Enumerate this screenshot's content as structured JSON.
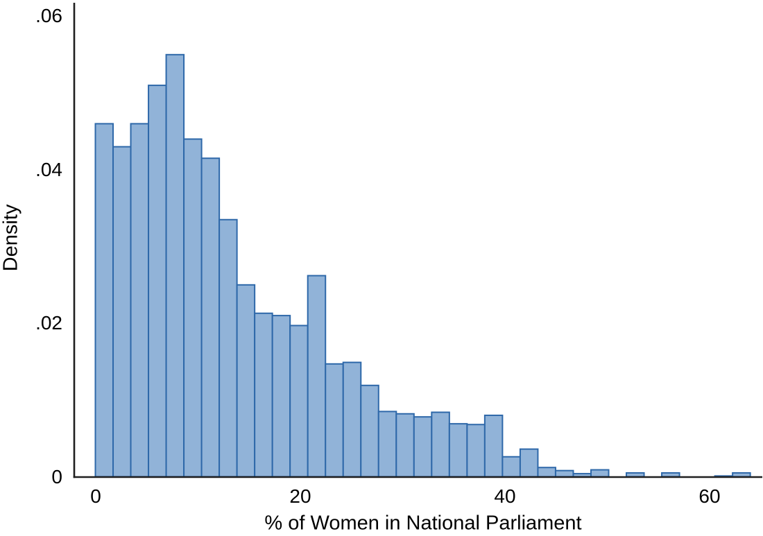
{
  "figure": {
    "background_color": "#ffffff",
    "text_color": "#000000"
  },
  "chart_data": {
    "type": "bar",
    "subtype": "histogram",
    "title": "",
    "xlabel": "% of Women in National Parliament",
    "ylabel": "Density",
    "n_bins": 37,
    "bin_width": 1.73,
    "bin_starts": [
      0,
      1.73,
      3.46,
      5.19,
      6.92,
      8.65,
      10.38,
      12.11,
      13.84,
      15.57,
      17.3,
      19.03,
      20.76,
      22.49,
      24.22,
      25.95,
      27.68,
      29.41,
      31.14,
      32.87,
      34.6,
      36.33,
      38.06,
      39.79,
      41.52,
      43.25,
      44.98,
      46.71,
      48.44,
      50.17,
      51.9,
      53.63,
      55.36,
      57.09,
      58.82,
      60.55,
      62.28
    ],
    "densities": [
      0.046,
      0.043,
      0.046,
      0.051,
      0.055,
      0.044,
      0.0415,
      0.0335,
      0.025,
      0.0213,
      0.021,
      0.0197,
      0.0262,
      0.0147,
      0.0149,
      0.0119,
      0.0085,
      0.0082,
      0.0078,
      0.0084,
      0.0069,
      0.0068,
      0.008,
      0.0026,
      0.0036,
      0.0012,
      0.0008,
      0.0004,
      0.0009,
      0,
      0.0005,
      0,
      0.0005,
      0,
      0,
      0.0001,
      0.0005
    ],
    "x_ticks": [
      0,
      20,
      40,
      60
    ],
    "x_tick_labels": [
      "0",
      "20",
      "40",
      "60"
    ],
    "y_ticks": [
      0,
      0.02,
      0.04,
      0.06
    ],
    "y_tick_labels": [
      "0",
      ".02",
      ".04",
      ".06"
    ],
    "xlim": [
      -2.1,
      65.3
    ],
    "ylim": [
      0,
      0.0625
    ],
    "grid": false,
    "legend": null,
    "bar_fill": "#91b3d8",
    "bar_stroke": "#2e68a9",
    "axis_color": "#1f1f1f"
  }
}
